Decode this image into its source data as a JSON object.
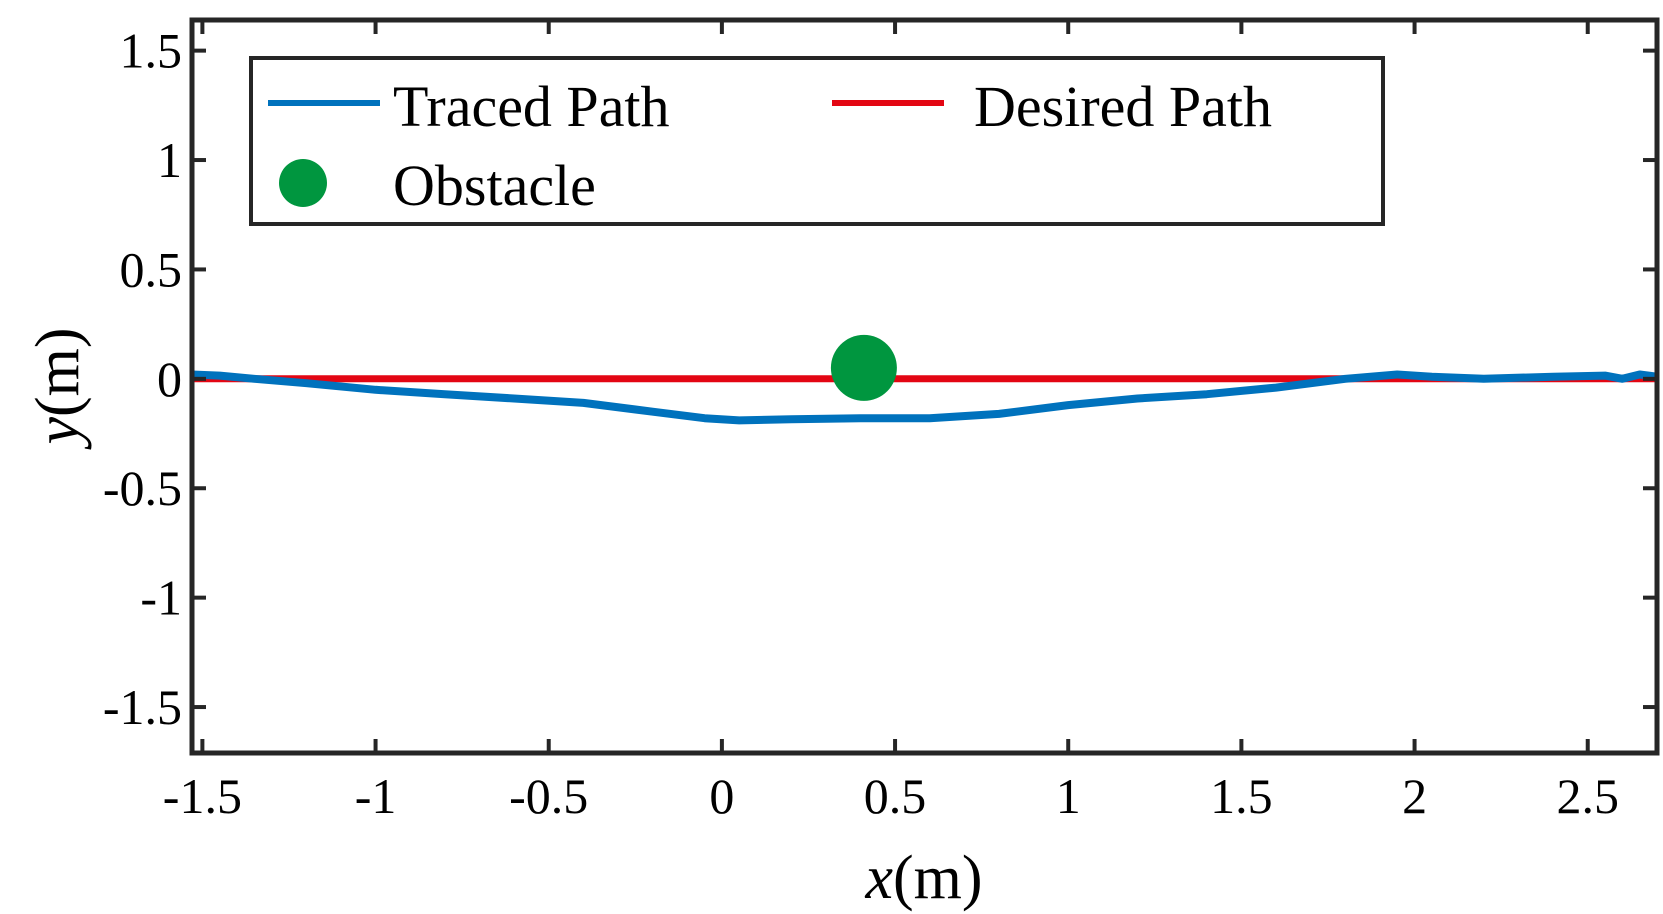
{
  "chart_data": {
    "type": "line",
    "xlabel": {
      "var": "x",
      "unit": "(m)"
    },
    "ylabel": {
      "var": "y",
      "unit": "(m)"
    },
    "xlim": [
      -1.53,
      2.7
    ],
    "ylim": [
      -1.71,
      1.64
    ],
    "xticks": [
      -1.5,
      -1,
      -0.5,
      0,
      0.5,
      1,
      1.5,
      2,
      2.5
    ],
    "xtick_labels": [
      "-1.5",
      "-1",
      "-0.5",
      "0",
      "0.5",
      "1",
      "1.5",
      "2",
      "2.5"
    ],
    "yticks": [
      -1.5,
      -1,
      -0.5,
      0,
      0.5,
      1,
      1.5
    ],
    "ytick_labels": [
      "-1.5",
      "-1",
      "-0.5",
      "0",
      "0.5",
      "1",
      "1.5"
    ],
    "grid": false,
    "legend_placement": "top-left",
    "series": [
      {
        "name": "Traced Path",
        "color": "#0072BD",
        "x": [
          -1.53,
          -1.45,
          -1.35,
          -1.2,
          -1.0,
          -0.8,
          -0.6,
          -0.4,
          -0.2,
          -0.05,
          0.05,
          0.2,
          0.4,
          0.6,
          0.8,
          1.0,
          1.2,
          1.4,
          1.6,
          1.8,
          1.95,
          2.05,
          2.2,
          2.4,
          2.55,
          2.6,
          2.65,
          2.7
        ],
        "y": [
          0.02,
          0.015,
          0.0,
          -0.02,
          -0.05,
          -0.07,
          -0.09,
          -0.11,
          -0.15,
          -0.18,
          -0.19,
          -0.185,
          -0.18,
          -0.18,
          -0.16,
          -0.12,
          -0.09,
          -0.07,
          -0.04,
          0.0,
          0.02,
          0.01,
          0.0,
          0.01,
          0.015,
          0.0,
          0.02,
          0.01
        ]
      },
      {
        "name": "Desired Path",
        "color": "#E30613",
        "x": [
          -1.53,
          2.7
        ],
        "y": [
          0,
          0
        ]
      }
    ],
    "markers": [
      {
        "name": "Obstacle",
        "color": "#00963F",
        "x": 0.41,
        "y": 0.05
      }
    ]
  }
}
